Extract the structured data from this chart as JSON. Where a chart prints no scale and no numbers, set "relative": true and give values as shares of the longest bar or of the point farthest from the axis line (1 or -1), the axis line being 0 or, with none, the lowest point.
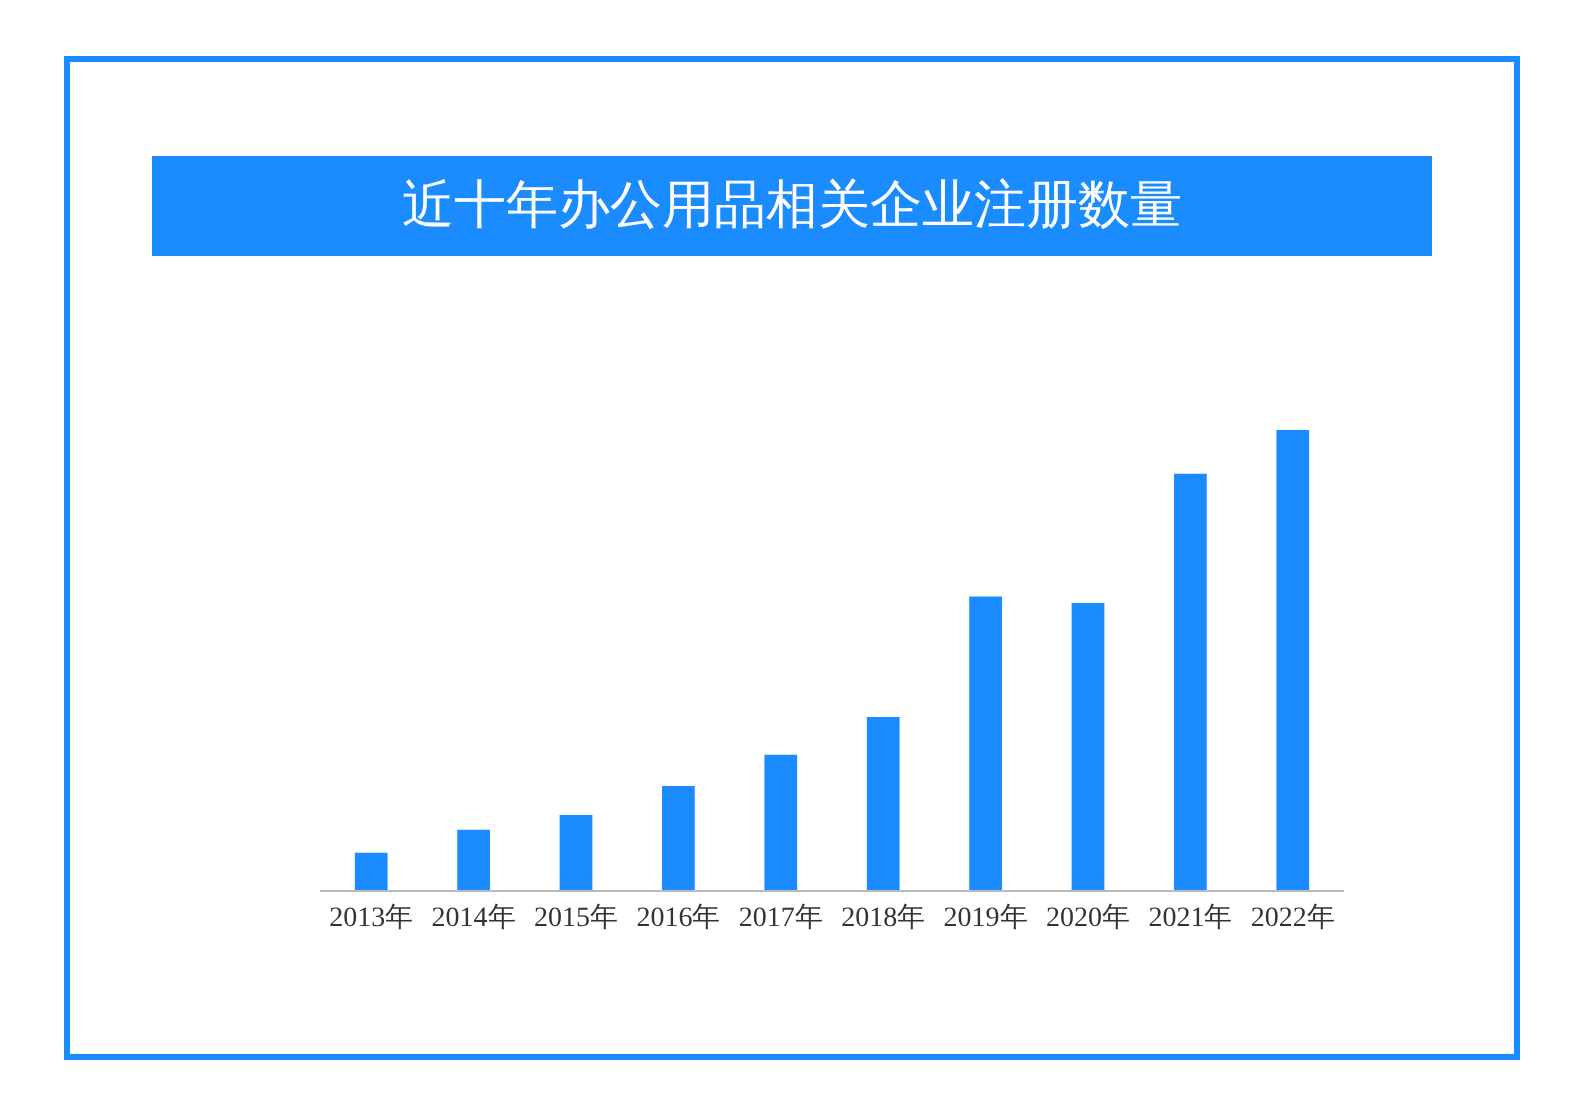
{
  "chart_data": {
    "type": "bar",
    "title": "近十年办公用品相关企业注册数量",
    "relative": true,
    "color": "#1a8cff",
    "categories": [
      "2013年",
      "2014年",
      "2015年",
      "2016年",
      "2017年",
      "2018年",
      "2019年",
      "2020年",
      "2021年",
      "2022年"
    ],
    "values": [
      0.081,
      0.131,
      0.163,
      0.226,
      0.294,
      0.376,
      0.638,
      0.624,
      0.905,
      1
    ]
  }
}
